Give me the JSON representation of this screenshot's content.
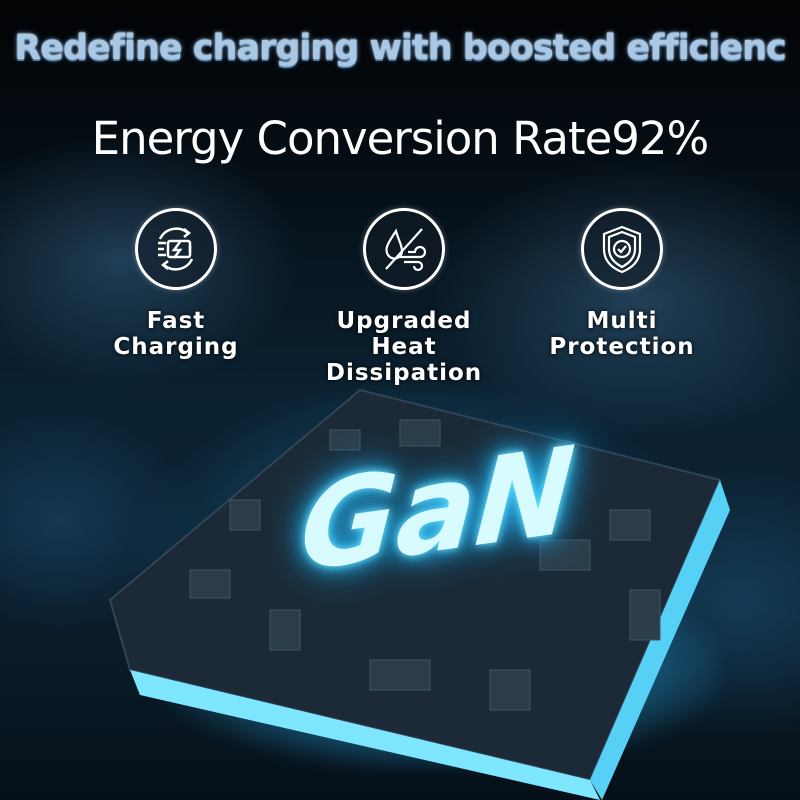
{
  "headline": "Redefine charging with boosted efficienc",
  "subheadline": "Energy Conversion Rate92%",
  "features": [
    {
      "icon": "fast-charging-battery-icon",
      "line1": "Fast",
      "line2": "Charging"
    },
    {
      "icon": "heat-dissipation-water-wind-icon",
      "line1": "Upgraded",
      "line2": "Heat Dissipation"
    },
    {
      "icon": "shield-check-icon",
      "line1": "Multi",
      "line2": "Protection"
    }
  ],
  "chip": {
    "label": "GaN"
  },
  "colors": {
    "headline": "#a9c8e6",
    "glow": "#6fe6ff",
    "background": "#04080d"
  }
}
